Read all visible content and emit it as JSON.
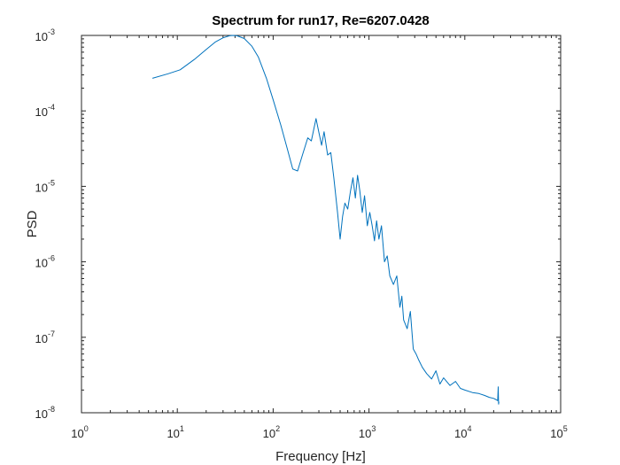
{
  "chart_data": {
    "type": "line",
    "title": "Spectrum for run17, Re=6207.0428",
    "xlabel": "Frequency [Hz]",
    "ylabel": "PSD",
    "xscale": "log",
    "yscale": "log",
    "xlim": [
      1,
      100000
    ],
    "ylim": [
      1e-08,
      0.001
    ],
    "x_ticks": [
      {
        "value": 1,
        "base": "10",
        "exp": "0"
      },
      {
        "value": 10,
        "base": "10",
        "exp": "1"
      },
      {
        "value": 100,
        "base": "10",
        "exp": "2"
      },
      {
        "value": 1000,
        "base": "10",
        "exp": "3"
      },
      {
        "value": 10000,
        "base": "10",
        "exp": "4"
      },
      {
        "value": 100000,
        "base": "10",
        "exp": "5"
      }
    ],
    "y_ticks": [
      {
        "value": 1e-08,
        "base": "10",
        "exp": "-8"
      },
      {
        "value": 1e-07,
        "base": "10",
        "exp": "-7"
      },
      {
        "value": 1e-06,
        "base": "10",
        "exp": "-6"
      },
      {
        "value": 1e-05,
        "base": "10",
        "exp": "-5"
      },
      {
        "value": 0.0001,
        "base": "10",
        "exp": "-4"
      },
      {
        "value": 0.001,
        "base": "10",
        "exp": "-3"
      }
    ],
    "grid": false,
    "series_color": "#0072BD",
    "series": [
      {
        "x": [
          5.5,
          8,
          10.7,
          15,
          20,
          25,
          30,
          35,
          38,
          42,
          50,
          60,
          70,
          85,
          100,
          120,
          140,
          160,
          180,
          200,
          230,
          250,
          280,
          300,
          320,
          340,
          370,
          400,
          430,
          470,
          500,
          530,
          560,
          600,
          640,
          680,
          720,
          760,
          800,
          850,
          900,
          960,
          1020,
          1080,
          1140,
          1200,
          1270,
          1350,
          1450,
          1550,
          1650,
          1800,
          1950,
          2100,
          2200,
          2300,
          2500,
          2700,
          2900,
          3100,
          3300,
          3600,
          4000,
          4500,
          5000,
          5500,
          6000,
          7000,
          8000,
          9000,
          10000,
          12000,
          14000,
          16000,
          18000,
          20000,
          21000,
          22000,
          22300,
          22500,
          22700
        ],
        "y": [
          0.00027,
          0.00031,
          0.00035,
          0.00048,
          0.00065,
          0.00082,
          0.00093,
          0.00099,
          0.001,
          0.00099,
          0.00091,
          0.00072,
          0.00052,
          0.00027,
          0.00014,
          6.5e-05,
          3.2e-05,
          1.7e-05,
          1.6e-05,
          2.5e-05,
          4.4e-05,
          4e-05,
          7.9e-05,
          5.2e-05,
          3.5e-05,
          5.3e-05,
          2.6e-05,
          2.8e-05,
          1.3e-05,
          4.5e-06,
          2e-06,
          4e-06,
          6e-06,
          5e-06,
          8.5e-06,
          1.3e-05,
          7e-06,
          1.4e-05,
          9e-06,
          4.5e-06,
          7.5e-06,
          3e-06,
          4.5e-06,
          3e-06,
          1.9e-06,
          3.5e-06,
          2e-06,
          3e-06,
          1e-06,
          1.2e-06,
          6.5e-07,
          5e-07,
          6.5e-07,
          2.5e-07,
          3.5e-07,
          1.7e-07,
          1.3e-07,
          2.2e-07,
          7e-08,
          6e-08,
          5e-08,
          4e-08,
          3.3e-08,
          2.8e-08,
          3.6e-08,
          2.4e-08,
          2.9e-08,
          2.3e-08,
          2.6e-08,
          2.1e-08,
          2e-08,
          1.85e-08,
          1.8e-08,
          1.7e-08,
          1.6e-08,
          1.55e-08,
          1.5e-08,
          1.45e-08,
          2.2e-08,
          1.3e-08,
          1.4e-08
        ]
      }
    ]
  }
}
